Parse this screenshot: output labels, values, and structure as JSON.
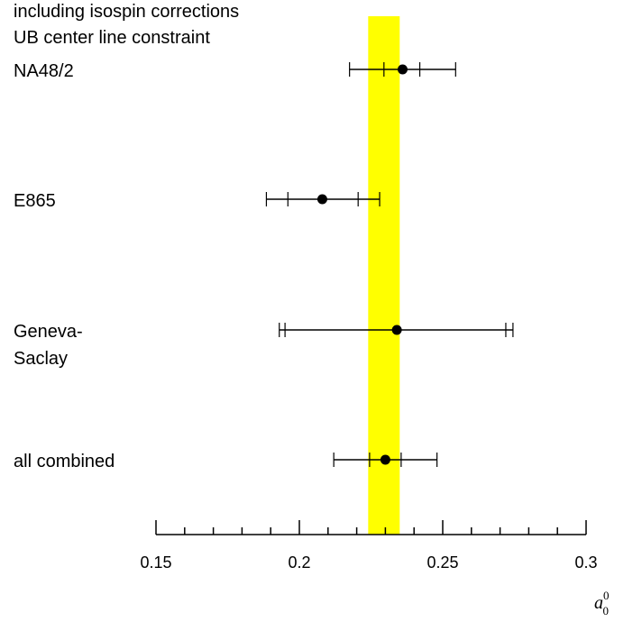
{
  "chart_data": {
    "type": "scatter",
    "title_lines": [
      "including isospin corrections",
      "UB center line constraint"
    ],
    "xlabel": "a_0^0",
    "xlim": [
      0.15,
      0.3
    ],
    "xticks": [
      0.15,
      0.2,
      0.25,
      0.3
    ],
    "xticklabels": [
      "0.15",
      "0.2",
      "0.25",
      "0.3"
    ],
    "minor_tick_step": 0.01,
    "band": {
      "from": 0.224,
      "to": 0.235,
      "color": "#ffff00"
    },
    "points": [
      {
        "label_lines": [
          "NA48/2"
        ],
        "value": 0.236,
        "inner": [
          0.2295,
          0.242
        ],
        "outer": [
          0.2175,
          0.2545
        ]
      },
      {
        "label_lines": [
          "E865"
        ],
        "value": 0.208,
        "inner": [
          0.196,
          0.2205
        ],
        "outer": [
          0.1885,
          0.228
        ]
      },
      {
        "label_lines": [
          "Geneva-",
          "Saclay"
        ],
        "value": 0.234,
        "inner": [
          0.195,
          0.272
        ],
        "outer": [
          0.193,
          0.2745
        ]
      },
      {
        "label_lines": [
          "all combined"
        ],
        "value": 0.23,
        "inner": [
          0.2245,
          0.2355
        ],
        "outer": [
          0.212,
          0.248
        ]
      }
    ]
  }
}
